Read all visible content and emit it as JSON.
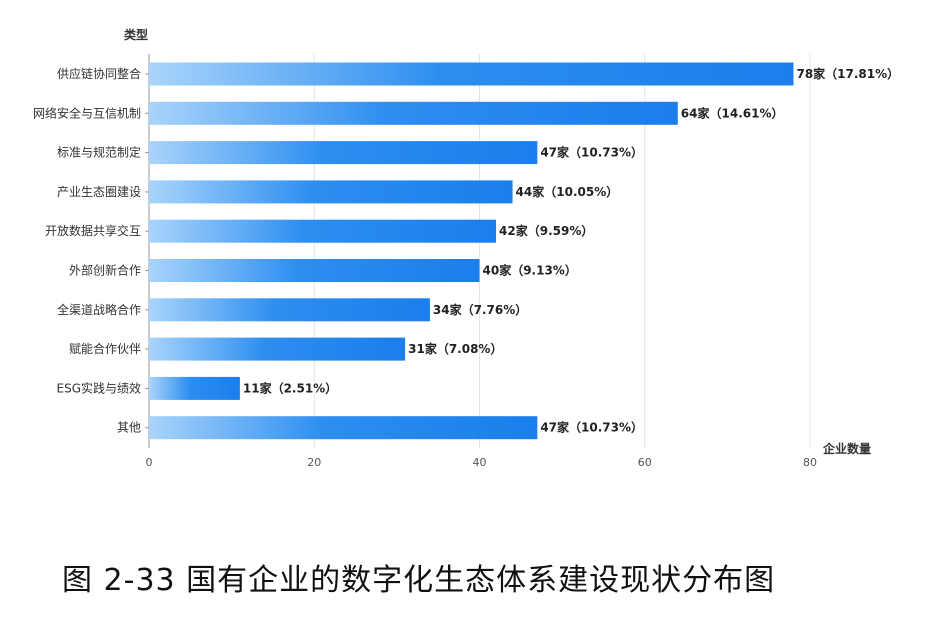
{
  "chart_data": {
    "type": "bar",
    "orientation": "horizontal",
    "ylabel": "类型",
    "xlabel": "企业数量",
    "xlim": [
      0,
      80
    ],
    "xticks": [
      0,
      20,
      40,
      60,
      80
    ],
    "grid": true,
    "categories": [
      "供应链协同整合",
      "网络安全与互信机制",
      "标准与规范制定",
      "产业生态圈建设",
      "开放数据共享交互",
      "外部创新合作",
      "全渠道战略合作",
      "赋能合作伙伴",
      "ESG实践与绩效",
      "其他"
    ],
    "values": [
      78,
      64,
      47,
      44,
      42,
      40,
      34,
      31,
      11,
      47
    ],
    "data_labels": [
      "78家（17.81%）",
      "64家（14.61%）",
      "47家（10.73%）",
      "44家（10.05%）",
      "42家（9.59%）",
      "40家（9.13%）",
      "34家（7.76%）",
      "31家（7.08%）",
      "11家（2.51%）",
      "47家（10.73%）"
    ],
    "colors": {
      "bar_start": "#a9d4fb",
      "bar_mid": "#2d8ef0",
      "bar_end": "#1a7fec",
      "grid": "#e4e4e4"
    }
  },
  "caption": "图 2-33  国有企业的数字化生态体系建设现状分布图"
}
